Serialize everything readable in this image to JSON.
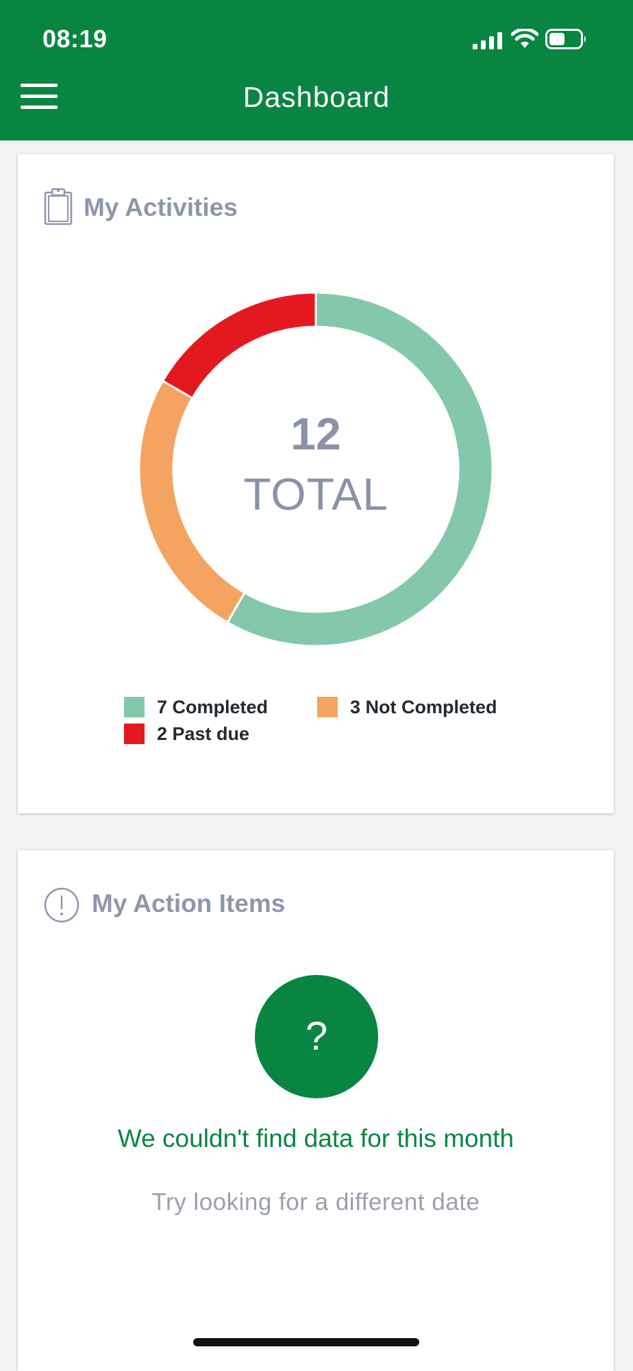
{
  "status_bar": {
    "time": "08:19",
    "icons": [
      "cellular-signal-icon",
      "wifi-icon",
      "battery-icon"
    ]
  },
  "header": {
    "title": "Dashboard",
    "menu_icon": "hamburger-menu-icon",
    "background": "#098542"
  },
  "activities": {
    "title": "My Activities",
    "icon": "clipboard-icon",
    "total_number": "12",
    "total_label": "TOTAL",
    "legend": [
      {
        "label": "7 Completed",
        "color": "#84c8ac"
      },
      {
        "label": "3 Not Completed",
        "color": "#f4a460"
      },
      {
        "label": "2 Past due",
        "color": "#e3191f"
      }
    ]
  },
  "chart_data": {
    "type": "pie",
    "donut": true,
    "categories": [
      "Completed",
      "Not Completed",
      "Past due"
    ],
    "values": [
      7,
      3,
      2
    ],
    "colors": [
      "#84c8ac",
      "#f4a460",
      "#e3191f"
    ],
    "center_text": "12 TOTAL",
    "legend_position": "bottom"
  },
  "action_items": {
    "title": "My Action Items",
    "icon": "exclamation-circle-icon",
    "empty_icon": "question-mark-icon",
    "empty_icon_text": "?",
    "empty_title": "We couldn't find data for this month",
    "empty_subtitle": "Try looking for a different date"
  }
}
